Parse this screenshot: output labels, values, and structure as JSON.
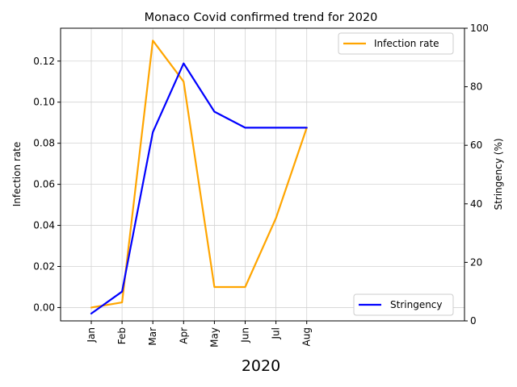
{
  "chart_data": {
    "type": "line",
    "title": "Monaco Covid confirmed trend for 2020",
    "xlabel": "2020",
    "ylabel_left": "Infection rate",
    "ylabel_right": "Stringency (%)",
    "categories": [
      "Jan",
      "Feb",
      "Mar",
      "Apr",
      "May",
      "Jun",
      "Jul",
      "Aug"
    ],
    "left_axis": {
      "ylim": [
        -0.0065,
        0.136
      ],
      "ticks": [
        "0.00",
        "0.02",
        "0.04",
        "0.06",
        "0.08",
        "0.10",
        "0.12"
      ]
    },
    "right_axis": {
      "ylim": [
        0,
        100
      ],
      "ticks": [
        "0",
        "20",
        "40",
        "60",
        "80",
        "100"
      ]
    },
    "grid": true,
    "series": [
      {
        "name": "Infection rate",
        "axis": "left",
        "color": "#FFA500",
        "legend": "top-right",
        "values": [
          0.0,
          0.0025,
          0.13,
          0.11,
          0.01,
          0.01,
          0.0435,
          0.0875
        ]
      },
      {
        "name": "Stringency",
        "axis": "right",
        "color": "#0000FF",
        "legend": "bottom-right",
        "values": [
          2.5,
          10,
          64.5,
          88,
          71.5,
          66,
          66,
          66
        ]
      }
    ]
  }
}
